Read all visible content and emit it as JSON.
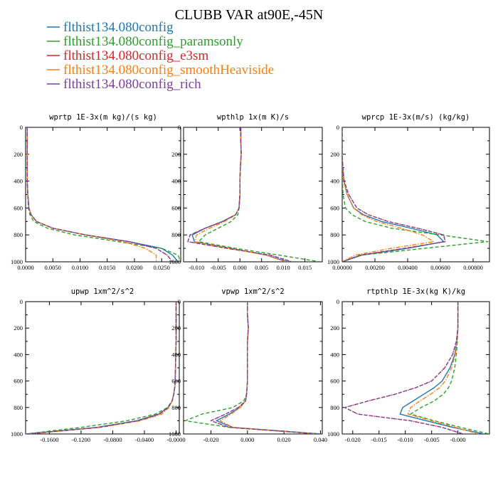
{
  "figure": {
    "title": "CLUBB VAR at90E,-45N"
  },
  "legend": [
    {
      "label": "flthist134.080config",
      "color": "#1f77b4",
      "dash": "solid"
    },
    {
      "label": "flthist134.080config_paramsonly",
      "color": "#2ca02c",
      "dash": "dash"
    },
    {
      "label": "flthist134.080config_e3sm",
      "color": "#d62728",
      "dash": "dot"
    },
    {
      "label": "flthist134.080config_smoothHeaviside",
      "color": "#ff7f0e",
      "dash": "dashdot"
    },
    {
      "label": "flthist134.080config_rich",
      "color": "#7b3f9e",
      "dash": "dash"
    }
  ],
  "chart_data": [
    {
      "type": "line",
      "title": "wprtp  1E-3x(m kg)/(s kg)",
      "xlim": [
        0,
        0.0285
      ],
      "ylim": [
        1000,
        0
      ],
      "xticks": [
        "0.0000",
        "0.0050",
        "0.0100",
        "0.0150",
        "0.0200",
        "0.0250"
      ],
      "xtick_values": [
        0,
        0.005,
        0.01,
        0.015,
        0.02,
        0.025
      ],
      "yticks": [
        0,
        200,
        400,
        600,
        800,
        1000
      ],
      "y": [
        0,
        100,
        200,
        300,
        400,
        500,
        600,
        650,
        700,
        750,
        800,
        850,
        900,
        950,
        1000
      ],
      "series": [
        {
          "values": [
            0.0003,
            0.0003,
            0.0003,
            0.0003,
            0.0003,
            0.0004,
            0.0006,
            0.001,
            0.002,
            0.005,
            0.011,
            0.019,
            0.025,
            0.027,
            0.028
          ]
        },
        {
          "values": [
            0.0003,
            0.0003,
            0.0003,
            0.0003,
            0.0003,
            0.0004,
            0.0005,
            0.0008,
            0.0015,
            0.004,
            0.009,
            0.017,
            0.025,
            0.028,
            0.0285
          ]
        },
        {
          "values": [
            0.0003,
            0.0003,
            0.0003,
            0.0003,
            0.0003,
            0.0004,
            0.0006,
            0.001,
            0.002,
            0.005,
            0.011,
            0.019,
            0.024,
            0.026,
            0.027
          ]
        },
        {
          "values": [
            0.0003,
            0.0003,
            0.0003,
            0.0003,
            0.0003,
            0.0004,
            0.0006,
            0.001,
            0.002,
            0.005,
            0.011,
            0.018,
            0.022,
            0.024,
            0.024
          ]
        },
        {
          "values": [
            0.0003,
            0.0003,
            0.0003,
            0.0003,
            0.0003,
            0.0004,
            0.0006,
            0.001,
            0.002,
            0.005,
            0.011,
            0.019,
            0.024,
            0.026,
            0.027
          ]
        }
      ]
    },
    {
      "type": "line",
      "title": "wpthlp  1x(m K)/s",
      "xlim": [
        -0.013,
        0.019
      ],
      "ylim": [
        1000,
        0
      ],
      "xticks": [
        "-0.010",
        "-0.005",
        "0.000",
        "0.005",
        "0.010",
        "0.015"
      ],
      "xtick_values": [
        -0.01,
        -0.005,
        0,
        0.005,
        0.01,
        0.015
      ],
      "yticks": [
        0,
        200,
        400,
        600,
        800,
        1000
      ],
      "y": [
        0,
        100,
        200,
        300,
        400,
        500,
        600,
        650,
        700,
        750,
        800,
        850,
        900,
        950,
        1000
      ],
      "series": [
        {
          "values": [
            0.0002,
            0.0002,
            0.0003,
            0.0001,
            0,
            0,
            -0.0002,
            -0.001,
            -0.004,
            -0.008,
            -0.011,
            -0.0105,
            -0.002,
            0.006,
            0.011
          ]
        },
        {
          "values": [
            0.0002,
            0.0002,
            0.0003,
            0.0001,
            0,
            0,
            -0.0002,
            -0.0005,
            -0.002,
            -0.005,
            -0.008,
            -0.0095,
            -0.001,
            0.009,
            0.0185
          ]
        },
        {
          "values": [
            0.0002,
            0.0002,
            0.0003,
            0.0001,
            0,
            0,
            -0.0002,
            -0.001,
            -0.004,
            -0.008,
            -0.0115,
            -0.012,
            -0.003,
            0.007,
            0.012
          ]
        },
        {
          "values": [
            0.0002,
            0.0002,
            0.0003,
            0.0001,
            0,
            0,
            -0.0002,
            -0.001,
            -0.0035,
            -0.007,
            -0.01,
            -0.0105,
            -0.002,
            0.006,
            0.0105
          ]
        },
        {
          "values": [
            0.0002,
            0.0002,
            0.0003,
            0.0001,
            0,
            0,
            -0.0002,
            -0.001,
            -0.004,
            -0.008,
            -0.0115,
            -0.012,
            -0.003,
            0.007,
            0.012
          ]
        }
      ]
    },
    {
      "type": "line",
      "title": "wprcp  1E-3x(m/s) (kg/kg)",
      "xlim": [
        0,
        0.009
      ],
      "ylim": [
        1000,
        0
      ],
      "xticks": [
        "0.00000",
        "0.00200",
        "0.00400",
        "0.00600",
        "0.00800"
      ],
      "xtick_values": [
        0,
        0.002,
        0.004,
        0.006,
        0.008
      ],
      "yticks": [
        0,
        200,
        400,
        600,
        800,
        1000
      ],
      "y": [
        0,
        100,
        200,
        300,
        400,
        500,
        600,
        650,
        700,
        750,
        800,
        850,
        900,
        950,
        1000
      ],
      "series": [
        {
          "values": [
            0,
            0,
            0,
            3e-05,
            0.0001,
            0.0003,
            0.0007,
            0.0013,
            0.0024,
            0.0042,
            0.0058,
            0.0062,
            0.004,
            0.0012,
            0
          ]
        },
        {
          "values": [
            0,
            0,
            0,
            0,
            2e-05,
            5e-05,
            0.0002,
            0.0006,
            0.0014,
            0.003,
            0.006,
            0.0089,
            0.005,
            0.0012,
            0
          ]
        },
        {
          "values": [
            0,
            0,
            0,
            4e-05,
            0.00012,
            0.0004,
            0.0009,
            0.0016,
            0.0028,
            0.0046,
            0.0062,
            0.0063,
            0.0038,
            0.0011,
            0
          ]
        },
        {
          "values": [
            0,
            0,
            0,
            3e-05,
            0.0001,
            0.0003,
            0.0007,
            0.0012,
            0.0021,
            0.0036,
            0.0049,
            0.0056,
            0.003,
            0.0008,
            0
          ]
        },
        {
          "values": [
            0,
            0,
            0,
            4e-05,
            0.00012,
            0.0004,
            0.0009,
            0.0016,
            0.0028,
            0.0046,
            0.0062,
            0.0063,
            0.0038,
            0.0011,
            0
          ]
        }
      ]
    },
    {
      "type": "line",
      "title": "upwp  1xm^2/s^2",
      "xlim": [
        -0.19,
        0.004
      ],
      "ylim": [
        1000,
        0
      ],
      "xticks": [
        "-0.1600",
        "-0.1200",
        "-0.0800",
        "-0.0400",
        "-0.0000"
      ],
      "xtick_values": [
        -0.16,
        -0.12,
        -0.08,
        -0.04,
        0
      ],
      "yticks": [
        0,
        200,
        400,
        600,
        800,
        1000
      ],
      "y": [
        0,
        100,
        200,
        300,
        400,
        500,
        600,
        650,
        700,
        750,
        800,
        850,
        900,
        950,
        1000
      ],
      "series": [
        {
          "values": [
            0,
            0,
            0,
            0,
            -0.0005,
            -0.0008,
            -0.0012,
            -0.0018,
            -0.003,
            -0.005,
            -0.01,
            -0.022,
            -0.05,
            -0.1,
            -0.19
          ]
        },
        {
          "values": [
            0,
            0,
            0,
            0,
            -0.0005,
            -0.0008,
            -0.0012,
            -0.0018,
            -0.003,
            -0.005,
            -0.011,
            -0.026,
            -0.062,
            -0.12,
            -0.19
          ]
        },
        {
          "values": [
            0,
            0,
            0,
            0,
            -0.0005,
            -0.0008,
            -0.0012,
            -0.0018,
            -0.003,
            -0.005,
            -0.01,
            -0.021,
            -0.048,
            -0.097,
            -0.188
          ]
        },
        {
          "values": [
            0,
            0,
            0,
            0,
            -0.0005,
            -0.0008,
            -0.0012,
            -0.0018,
            -0.003,
            -0.005,
            -0.009,
            -0.018,
            -0.045,
            -0.095,
            -0.185
          ]
        },
        {
          "values": [
            0,
            0,
            0,
            0,
            -0.0005,
            -0.0008,
            -0.0012,
            -0.0018,
            -0.003,
            -0.005,
            -0.01,
            -0.021,
            -0.048,
            -0.097,
            -0.188
          ]
        }
      ]
    },
    {
      "type": "line",
      "title": "vpwp  1xm^2/s^2",
      "xlim": [
        -0.035,
        0.041
      ],
      "ylim": [
        1000,
        0
      ],
      "xticks": [
        "-0.020",
        "0.000",
        "0.020",
        "0.040"
      ],
      "xtick_values": [
        -0.02,
        0,
        0.02,
        0.04
      ],
      "yticks": [
        0,
        200,
        400,
        600,
        800,
        1000
      ],
      "y": [
        0,
        100,
        200,
        300,
        400,
        500,
        600,
        650,
        700,
        750,
        800,
        850,
        900,
        950,
        1000
      ],
      "series": [
        {
          "values": [
            0,
            0,
            0.0005,
            0,
            0,
            0,
            0,
            -0.0002,
            -0.0005,
            -0.001,
            -0.004,
            -0.01,
            -0.017,
            -0.008,
            0.04
          ]
        },
        {
          "values": [
            0,
            0,
            0.0005,
            0,
            0,
            0,
            0,
            -0.0002,
            -0.0005,
            -0.002,
            -0.008,
            -0.025,
            -0.034,
            -0.01,
            0.04
          ]
        },
        {
          "values": [
            0,
            0,
            0.0005,
            0,
            0,
            0,
            0,
            -0.0002,
            -0.0005,
            -0.001,
            -0.005,
            -0.012,
            -0.02,
            -0.01,
            0.039
          ]
        },
        {
          "values": [
            0,
            0,
            0.0005,
            0,
            0,
            0,
            0,
            -0.0002,
            -0.0005,
            -0.001,
            -0.004,
            -0.009,
            -0.015,
            -0.008,
            0.038
          ]
        },
        {
          "values": [
            0,
            0,
            0.0005,
            0,
            0,
            0,
            0,
            -0.0002,
            -0.0005,
            -0.001,
            -0.005,
            -0.012,
            -0.02,
            -0.01,
            0.039
          ]
        }
      ]
    },
    {
      "type": "line",
      "title": "rtpthlp  1E-3x(kg K)/kg",
      "xlim": [
        -0.022,
        0.006
      ],
      "ylim": [
        1000,
        0
      ],
      "xticks": [
        "-0.020",
        "-0.015",
        "-0.010",
        "-0.005",
        "-0.000"
      ],
      "xtick_values": [
        -0.02,
        -0.015,
        -0.01,
        -0.005,
        0
      ],
      "yticks": [
        0,
        200,
        400,
        600,
        800,
        1000
      ],
      "y": [
        0,
        100,
        200,
        300,
        400,
        500,
        600,
        650,
        700,
        750,
        800,
        850,
        900,
        950,
        1000
      ],
      "series": [
        {
          "values": [
            0,
            0,
            0,
            -0.0002,
            -0.0006,
            -0.0015,
            -0.003,
            -0.0045,
            -0.0065,
            -0.0085,
            -0.0105,
            -0.011,
            -0.006,
            -0.001,
            0.005
          ]
        },
        {
          "values": [
            0,
            0,
            0,
            -0.0001,
            -0.0003,
            -0.0006,
            -0.0012,
            -0.0018,
            -0.0028,
            -0.0045,
            -0.007,
            -0.009,
            -0.0045,
            0.0005,
            0.006
          ]
        },
        {
          "values": [
            0,
            0,
            0,
            -0.0003,
            -0.001,
            -0.0025,
            -0.005,
            -0.008,
            -0.012,
            -0.017,
            -0.0215,
            -0.019,
            -0.009,
            -0.003,
            0.001
          ]
        },
        {
          "values": [
            0,
            0,
            0,
            -0.0002,
            -0.0005,
            -0.0012,
            -0.0024,
            -0.0035,
            -0.0052,
            -0.0072,
            -0.009,
            -0.0095,
            -0.005,
            -0.0005,
            0.004
          ]
        },
        {
          "values": [
            0,
            0,
            0,
            -0.0003,
            -0.001,
            -0.0025,
            -0.005,
            -0.008,
            -0.012,
            -0.017,
            -0.0215,
            -0.019,
            -0.009,
            -0.003,
            0.001
          ]
        }
      ]
    }
  ]
}
